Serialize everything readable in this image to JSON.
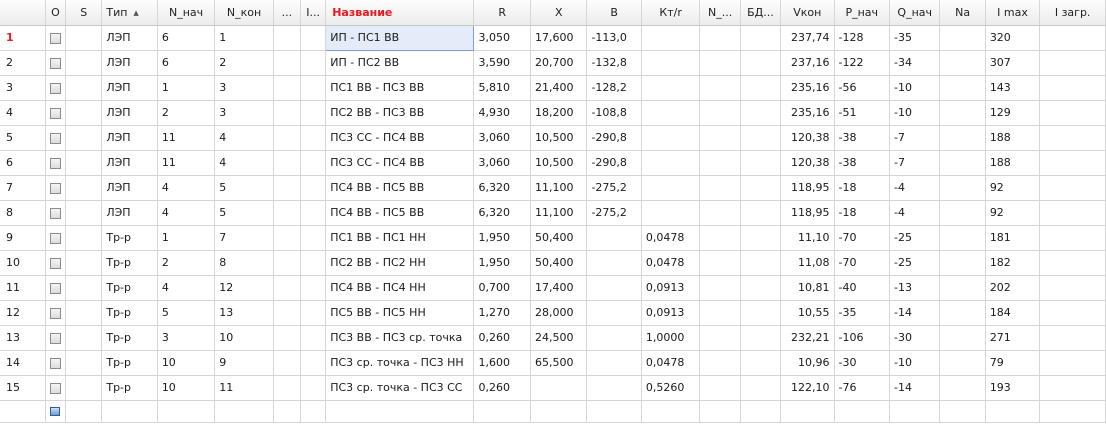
{
  "columns": [
    "O",
    "S",
    "Тип",
    "N_нач",
    "N_кон",
    "...",
    "I...",
    "Название",
    "R",
    "X",
    "B",
    "Кт/r",
    "N_...",
    "БД...",
    "Vкон",
    "P_нач",
    "Q_нач",
    "Na",
    "I max",
    "I загр."
  ],
  "rows": [
    {
      "num": "1",
      "type": "ЛЭП",
      "n_start": "6",
      "n_end": "1",
      "name": "ИП - ПС1 ВВ",
      "r": "3,050",
      "x": "17,600",
      "b": "-113,0",
      "kt": "",
      "v": "237,74",
      "p": "-128",
      "q": "-35",
      "imax": "320"
    },
    {
      "num": "2",
      "type": "ЛЭП",
      "n_start": "6",
      "n_end": "2",
      "name": "ИП - ПС2 ВВ",
      "r": "3,590",
      "x": "20,700",
      "b": "-132,8",
      "kt": "",
      "v": "237,16",
      "p": "-122",
      "q": "-34",
      "imax": "307"
    },
    {
      "num": "3",
      "type": "ЛЭП",
      "n_start": "1",
      "n_end": "3",
      "name": "ПС1 ВВ - ПС3 ВВ",
      "r": "5,810",
      "x": "21,400",
      "b": "-128,2",
      "kt": "",
      "v": "235,16",
      "p": "-56",
      "q": "-10",
      "imax": "143"
    },
    {
      "num": "4",
      "type": "ЛЭП",
      "n_start": "2",
      "n_end": "3",
      "name": "ПС2 ВВ - ПС3 ВВ",
      "r": "4,930",
      "x": "18,200",
      "b": "-108,8",
      "kt": "",
      "v": "235,16",
      "p": "-51",
      "q": "-10",
      "imax": "129"
    },
    {
      "num": "5",
      "type": "ЛЭП",
      "n_start": "11",
      "n_end": "4",
      "name": "ПС3 СС - ПС4 ВВ",
      "r": "3,060",
      "x": "10,500",
      "b": "-290,8",
      "kt": "",
      "v": "120,38",
      "p": "-38",
      "q": "-7",
      "imax": "188"
    },
    {
      "num": "6",
      "type": "ЛЭП",
      "n_start": "11",
      "n_end": "4",
      "name": "ПС3 СС - ПС4 ВВ",
      "r": "3,060",
      "x": "10,500",
      "b": "-290,8",
      "kt": "",
      "v": "120,38",
      "p": "-38",
      "q": "-7",
      "imax": "188"
    },
    {
      "num": "7",
      "type": "ЛЭП",
      "n_start": "4",
      "n_end": "5",
      "name": "ПС4 ВВ - ПС5 ВВ",
      "r": "6,320",
      "x": "11,100",
      "b": "-275,2",
      "kt": "",
      "v": "118,95",
      "p": "-18",
      "q": "-4",
      "imax": "92"
    },
    {
      "num": "8",
      "type": "ЛЭП",
      "n_start": "4",
      "n_end": "5",
      "name": "ПС4 ВВ - ПС5 ВВ",
      "r": "6,320",
      "x": "11,100",
      "b": "-275,2",
      "kt": "",
      "v": "118,95",
      "p": "-18",
      "q": "-4",
      "imax": "92"
    },
    {
      "num": "9",
      "type": "Тр-р",
      "n_start": "1",
      "n_end": "7",
      "name": "ПС1 ВВ - ПС1 НН",
      "r": "1,950",
      "x": "50,400",
      "b": "",
      "kt": "0,0478",
      "v": "11,10",
      "p": "-70",
      "q": "-25",
      "imax": "181"
    },
    {
      "num": "10",
      "type": "Тр-р",
      "n_start": "2",
      "n_end": "8",
      "name": "ПС2 ВВ - ПС2 НН",
      "r": "1,950",
      "x": "50,400",
      "b": "",
      "kt": "0,0478",
      "v": "11,08",
      "p": "-70",
      "q": "-25",
      "imax": "182"
    },
    {
      "num": "11",
      "type": "Тр-р",
      "n_start": "4",
      "n_end": "12",
      "name": "ПС4 ВВ - ПС4 НН",
      "r": "0,700",
      "x": "17,400",
      "b": "",
      "kt": "0,0913",
      "v": "10,81",
      "p": "-40",
      "q": "-13",
      "imax": "202"
    },
    {
      "num": "12",
      "type": "Тр-р",
      "n_start": "5",
      "n_end": "13",
      "name": "ПС5 ВВ - ПС5 НН",
      "r": "1,270",
      "x": "28,000",
      "b": "",
      "kt": "0,0913",
      "v": "10,55",
      "p": "-35",
      "q": "-14",
      "imax": "184"
    },
    {
      "num": "13",
      "type": "Тр-р",
      "n_start": "3",
      "n_end": "10",
      "name": "ПС3 ВВ - ПС3 ср. точка",
      "r": "0,260",
      "x": "24,500",
      "b": "",
      "kt": "1,0000",
      "v": "232,21",
      "p": "-106",
      "q": "-30",
      "imax": "271"
    },
    {
      "num": "14",
      "type": "Тр-р",
      "n_start": "10",
      "n_end": "9",
      "name": "ПС3 ср. точка - ПС3 НН",
      "r": "1,600",
      "x": "65,500",
      "b": "",
      "kt": "0,0478",
      "v": "10,96",
      "p": "-30",
      "q": "-10",
      "imax": "79"
    },
    {
      "num": "15",
      "type": "Тр-р",
      "n_start": "10",
      "n_end": "11",
      "name": "ПС3 ср. точка - ПС3 СС",
      "r": "0,260",
      "x": "",
      "b": "",
      "kt": "0,5260",
      "v": "122,10",
      "p": "-76",
      "q": "-14",
      "imax": "193"
    }
  ],
  "selected_row": "1",
  "icons": {
    "sort": "sort-ascending-icon",
    "checkbox": "checkbox-icon",
    "new_row": "new-row-icon"
  },
  "colors": {
    "header_accent": "#e8181d",
    "selection_bg": "#e3ecf8"
  }
}
